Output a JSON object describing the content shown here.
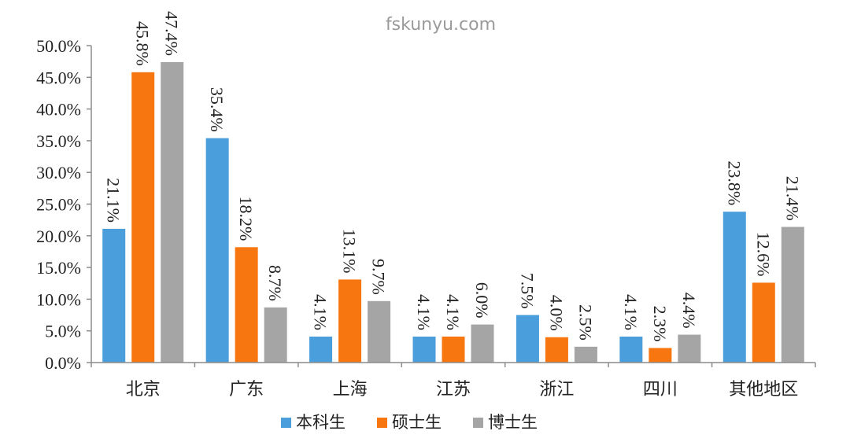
{
  "watermark": "fskunyu.com",
  "chart_data": {
    "type": "bar",
    "categories": [
      "北京",
      "广东",
      "上海",
      "江苏",
      "浙江",
      "四川",
      "其他地区"
    ],
    "series": [
      {
        "name": "本科生",
        "color": "#4a9edc",
        "values": [
          21.1,
          35.4,
          4.1,
          4.1,
          7.5,
          4.1,
          23.8
        ]
      },
      {
        "name": "硕士生",
        "color": "#f7760f",
        "values": [
          45.8,
          18.2,
          13.1,
          4.1,
          4.0,
          2.3,
          12.6
        ]
      },
      {
        "name": "博士生",
        "color": "#a5a5a5",
        "values": [
          47.4,
          8.7,
          9.7,
          6.0,
          2.5,
          4.4,
          21.4
        ]
      }
    ],
    "data_labels": [
      [
        "21.1%",
        "35.4%",
        "4.1%",
        "4.1%",
        "7.5%",
        "4.1%",
        "23.8%"
      ],
      [
        "45.8%",
        "18.2%",
        "13.1%",
        "4.1%",
        "4.0%",
        "2.3%",
        "12.6%"
      ],
      [
        "47.4%",
        "8.7%",
        "9.7%",
        "6.0%",
        "2.5%",
        "4.4%",
        "21.4%"
      ]
    ],
    "yticks": [
      "0.0%",
      "5.0%",
      "10.0%",
      "15.0%",
      "20.0%",
      "25.0%",
      "30.0%",
      "35.0%",
      "40.0%",
      "45.0%",
      "50.0%"
    ],
    "ylim": [
      0,
      50
    ],
    "title": "",
    "xlabel": "",
    "ylabel": "",
    "grid": false,
    "legend_position": "bottom"
  }
}
